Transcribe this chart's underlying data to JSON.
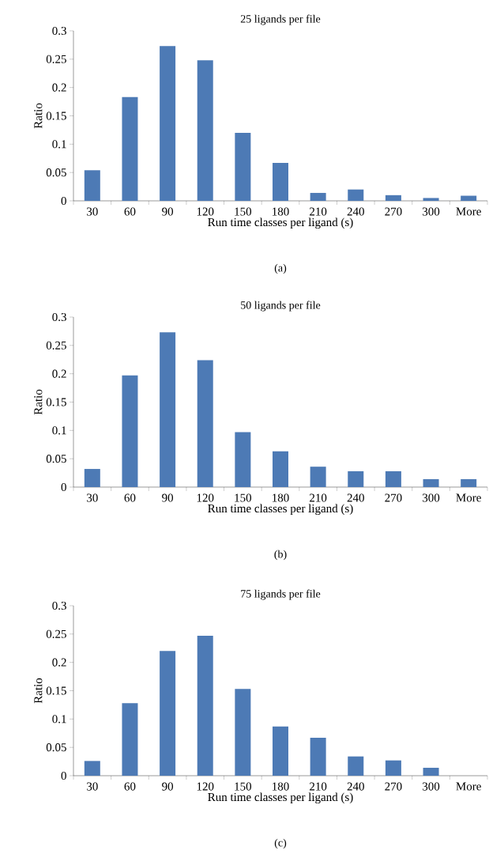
{
  "chart_data": [
    {
      "type": "bar",
      "title": "25 ligands per file",
      "xlabel": "Run time classes per ligand (s)",
      "ylabel": "Ratio",
      "categories": [
        "30",
        "60",
        "90",
        "120",
        "150",
        "180",
        "210",
        "240",
        "270",
        "300",
        "More"
      ],
      "values": [
        0.054,
        0.183,
        0.273,
        0.248,
        0.12,
        0.067,
        0.014,
        0.02,
        0.01,
        0.005,
        0.009
      ],
      "color": "#4d7ab5",
      "ylim": [
        0,
        0.3
      ],
      "yticks": [
        0,
        0.05,
        0.1,
        0.15,
        0.2,
        0.25,
        0.3
      ],
      "annotations": [
        "(a)"
      ]
    },
    {
      "type": "bar",
      "title": "50 ligands per file",
      "xlabel": "Run time classes per ligand (s)",
      "ylabel": "Ratio",
      "categories": [
        "30",
        "60",
        "90",
        "120",
        "150",
        "180",
        "210",
        "240",
        "270",
        "300",
        "More"
      ],
      "values": [
        0.032,
        0.197,
        0.273,
        0.224,
        0.097,
        0.063,
        0.036,
        0.028,
        0.028,
        0.014,
        0.014
      ],
      "color": "#4d7ab5",
      "ylim": [
        0,
        0.3
      ],
      "yticks": [
        0,
        0.05,
        0.1,
        0.15,
        0.2,
        0.25,
        0.3
      ],
      "annotations": [
        "(b)"
      ]
    },
    {
      "type": "bar",
      "title": "75 ligands per file",
      "xlabel": "Run time classes per ligand (s)",
      "ylabel": "Ratio",
      "categories": [
        "30",
        "60",
        "90",
        "120",
        "150",
        "180",
        "210",
        "240",
        "270",
        "300",
        "More"
      ],
      "values": [
        0.026,
        0.128,
        0.22,
        0.247,
        0.153,
        0.087,
        0.067,
        0.034,
        0.027,
        0.014,
        0
      ],
      "color": "#4d7ab5",
      "ylim": [
        0,
        0.3
      ],
      "yticks": [
        0,
        0.05,
        0.1,
        0.15,
        0.2,
        0.25,
        0.3
      ],
      "annotations": [
        "(c)"
      ]
    }
  ]
}
